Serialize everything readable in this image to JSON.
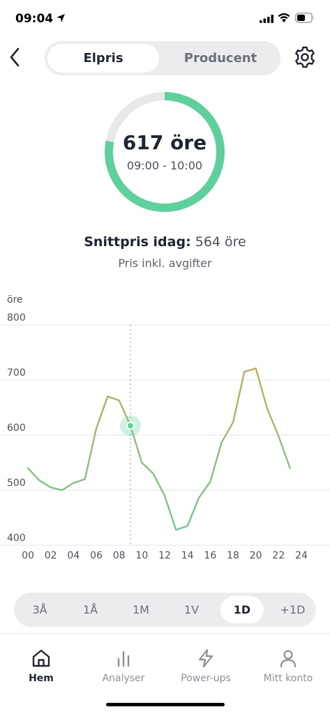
{
  "status_bar": {
    "time": "09:04"
  },
  "header": {
    "segments": [
      "Elpris",
      "Producent"
    ],
    "active_segment": "Elpris"
  },
  "gauge": {
    "price": "617 öre",
    "time_range": "09:00 - 10:00",
    "progress": 0.78,
    "accent": "#5fcf9c"
  },
  "summary": {
    "avg_label": "Snittpris idag:",
    "avg_value": "564 öre",
    "subtitle": "Pris inkl. avgifter"
  },
  "chart_data": {
    "type": "line",
    "ylabel": "öre",
    "ylim": [
      400,
      800
    ],
    "y_ticks": [
      "400",
      "500",
      "600",
      "700",
      "800"
    ],
    "x_ticks": [
      "00",
      "02",
      "04",
      "06",
      "08",
      "10",
      "12",
      "14",
      "16",
      "18",
      "20",
      "22",
      "24"
    ],
    "xlim": [
      0,
      24
    ],
    "x": [
      0,
      1,
      2,
      3,
      4,
      5,
      6,
      7,
      8,
      9,
      10,
      11,
      12,
      13,
      14,
      15,
      16,
      17,
      18,
      19,
      20,
      21,
      22,
      23
    ],
    "values": [
      540,
      518,
      505,
      500,
      513,
      520,
      612,
      670,
      663,
      617,
      550,
      530,
      490,
      428,
      435,
      486,
      515,
      587,
      623,
      715,
      721,
      648,
      598,
      540
    ],
    "current_x": 9,
    "grid": true,
    "low_color": "#5fcf9c",
    "high_color": "#e0a046"
  },
  "range_selector": {
    "options": [
      "3Å",
      "1Å",
      "1M",
      "1V",
      "1D",
      "+1D"
    ],
    "active": "1D"
  },
  "tab_bar": {
    "tabs": [
      {
        "label": "Hem",
        "icon": "home-icon"
      },
      {
        "label": "Analyser",
        "icon": "bar-chart-icon"
      },
      {
        "label": "Power-ups",
        "icon": "lightning-icon"
      },
      {
        "label": "Mitt konto",
        "icon": "user-icon"
      }
    ],
    "active": "Hem"
  }
}
